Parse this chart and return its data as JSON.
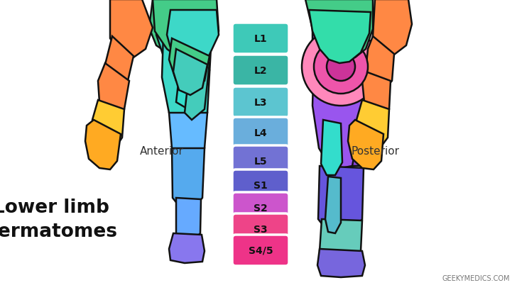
{
  "title": "Lower limb\ndermatomes",
  "watermark": "GEEKYMEDICS.COM",
  "anterior_label": "Anterior",
  "posterior_label": "Posterior",
  "bg_color": "#ffffff",
  "labels": [
    "L1",
    "L2",
    "L3",
    "L4",
    "L5",
    "S1",
    "S2",
    "S3",
    "S4/5"
  ],
  "label_colors": [
    "#3ec9b8",
    "#3ab5a5",
    "#5cc5d0",
    "#6aaedc",
    "#7272d4",
    "#5f5fcc",
    "#cc55cc",
    "#ee4488",
    "#ee3388"
  ],
  "label_text_color": "#111111",
  "anterior": {
    "thigh_upper_color": "#3dd8c8",
    "thigh_inner_color": "#44ccbb",
    "thigh_lower_color": "#55ccee",
    "knee_color": "#66bbff",
    "shin_color": "#55aaee",
    "shin_lower_color": "#66aaff",
    "lower_leg_color": "#7799ff",
    "foot_color": "#8877ee",
    "groin_color": "#33ddcc",
    "hip_upper_color": "#44bb99"
  },
  "posterior": {
    "upper_color": "#9955ee",
    "upper2_color": "#8844dd",
    "lower_color": "#6655dd",
    "lower2_color": "#55aacc",
    "foot_color": "#7766dd",
    "calf_color": "#55bbcc",
    "calf2_color": "#66ccbb",
    "teal_band": "#33ddcc",
    "pink1": "#ff88bb",
    "pink2": "#ee55aa",
    "pink3": "#cc3399"
  },
  "arm_color": "#ff8844",
  "hand_color_top": "#ffcc33",
  "hand_color_bot": "#ffaa22",
  "upper_back_green": "#44cc88",
  "upper_back_teal": "#33ddaa"
}
